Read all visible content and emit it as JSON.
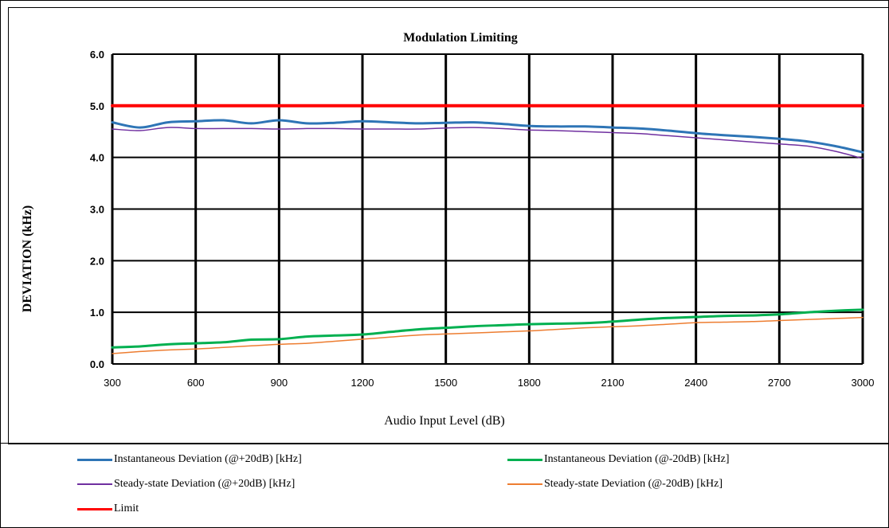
{
  "chart_data": {
    "type": "line",
    "title": "Modulation Limiting",
    "xlabel": "Audio Input Level (dB)",
    "ylabel": "DEVIATION (kHz)",
    "xlim": [
      300,
      3000
    ],
    "ylim": [
      0,
      6
    ],
    "grid": true,
    "legend_position": "bottom",
    "x_ticks": [
      "300",
      "600",
      "900",
      "1200",
      "1500",
      "1800",
      "2100",
      "2400",
      "2700",
      "3000"
    ],
    "y_ticks": [
      "0.0",
      "1.0",
      "2.0",
      "3.0",
      "4.0",
      "5.0",
      "6.0"
    ],
    "x": [
      300,
      400,
      500,
      600,
      700,
      800,
      900,
      1000,
      1100,
      1200,
      1300,
      1400,
      1500,
      1600,
      1700,
      1800,
      1900,
      2000,
      2100,
      2200,
      2300,
      2400,
      2500,
      2600,
      2700,
      2800,
      2900,
      3000
    ],
    "series": [
      {
        "name": "Instantaneous Deviation (@+20dB) [kHz]",
        "color": "#2e75b6",
        "width": 3,
        "values": [
          4.68,
          4.58,
          4.68,
          4.7,
          4.72,
          4.66,
          4.72,
          4.66,
          4.67,
          4.7,
          4.68,
          4.66,
          4.67,
          4.68,
          4.65,
          4.61,
          4.6,
          4.6,
          4.58,
          4.56,
          4.52,
          4.47,
          4.43,
          4.4,
          4.36,
          4.31,
          4.22,
          4.1
        ]
      },
      {
        "name": "Instantaneous Deviation (@-20dB) [kHz]",
        "color": "#00b050",
        "width": 3,
        "values": [
          0.32,
          0.34,
          0.38,
          0.4,
          0.42,
          0.47,
          0.48,
          0.53,
          0.55,
          0.57,
          0.62,
          0.67,
          0.7,
          0.73,
          0.75,
          0.77,
          0.78,
          0.79,
          0.82,
          0.86,
          0.89,
          0.91,
          0.93,
          0.94,
          0.96,
          1.0,
          1.03,
          1.05
        ]
      },
      {
        "name": "Steady-state Deviation (@+20dB) [kHz]",
        "color": "#7030a0",
        "width": 1.5,
        "values": [
          4.55,
          4.52,
          4.58,
          4.56,
          4.56,
          4.56,
          4.55,
          4.56,
          4.56,
          4.55,
          4.55,
          4.55,
          4.57,
          4.58,
          4.56,
          4.53,
          4.52,
          4.5,
          4.48,
          4.46,
          4.42,
          4.38,
          4.34,
          4.3,
          4.26,
          4.22,
          4.12,
          3.98
        ]
      },
      {
        "name": "Steady-state Deviation (@-20dB) [kHz]",
        "color": "#ed7d31",
        "width": 1.5,
        "values": [
          0.2,
          0.24,
          0.27,
          0.29,
          0.32,
          0.35,
          0.38,
          0.4,
          0.44,
          0.48,
          0.52,
          0.56,
          0.58,
          0.6,
          0.62,
          0.64,
          0.67,
          0.7,
          0.72,
          0.74,
          0.77,
          0.8,
          0.81,
          0.82,
          0.84,
          0.86,
          0.88,
          0.9
        ]
      },
      {
        "name": "Limit",
        "color": "#ff0000",
        "width": 4,
        "values": [
          5.0,
          5.0,
          5.0,
          5.0,
          5.0,
          5.0,
          5.0,
          5.0,
          5.0,
          5.0,
          5.0,
          5.0,
          5.0,
          5.0,
          5.0,
          5.0,
          5.0,
          5.0,
          5.0,
          5.0,
          5.0,
          5.0,
          5.0,
          5.0,
          5.0,
          5.0,
          5.0,
          5.0
        ]
      }
    ]
  }
}
